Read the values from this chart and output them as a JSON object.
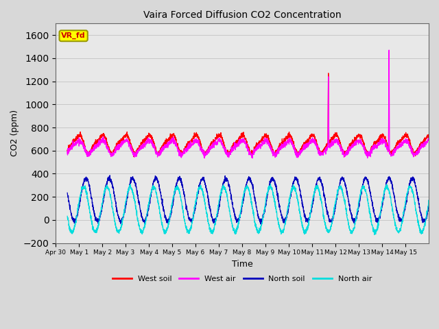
{
  "title": "Vaira Forced Diffusion CO2 Concentration",
  "xlabel": "Time",
  "ylabel": "CO2 (ppm)",
  "ylim": [
    -200,
    1700
  ],
  "yticks": [
    -200,
    0,
    200,
    400,
    600,
    800,
    1000,
    1200,
    1400,
    1600
  ],
  "legend_label": "VR_fd",
  "series_labels": [
    "West soil",
    "West air",
    "North soil",
    "North air"
  ],
  "series_colors": [
    "#ff0000",
    "#ff00ff",
    "#0000bb",
    "#00dddd"
  ],
  "background_color": "#d8d8d8",
  "plot_bg_color": "#e8e8e8",
  "n_days": 15.5,
  "start_day": -0.5,
  "west_soil_base": 660,
  "west_soil_amp": 70,
  "west_air_base": 630,
  "west_air_amp": 55,
  "north_soil_base": 175,
  "north_soil_amp": 185,
  "north_air_base": 90,
  "north_air_amp": 195,
  "spike1_day": 10.7,
  "spike1_red_val": 1270,
  "spike1_mag_val": 1240,
  "spike2_day": 13.3,
  "spike2_mag_val": 1470
}
